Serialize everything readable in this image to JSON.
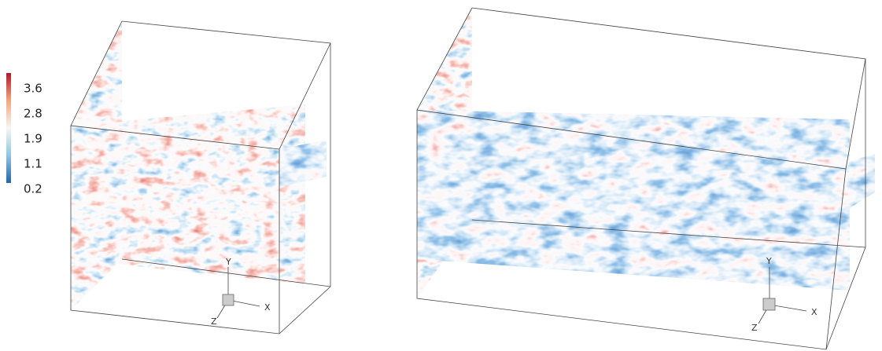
{
  "colorbar": {
    "ticks": [
      "3.6",
      "2.8",
      "1.9",
      "1.1",
      "0.2"
    ]
  },
  "panels": [
    {
      "axes": {
        "y": "Y",
        "x": "X",
        "z": "Z"
      }
    },
    {
      "axes": {
        "y": "Y",
        "x": "X",
        "z": "Z"
      }
    }
  ]
}
